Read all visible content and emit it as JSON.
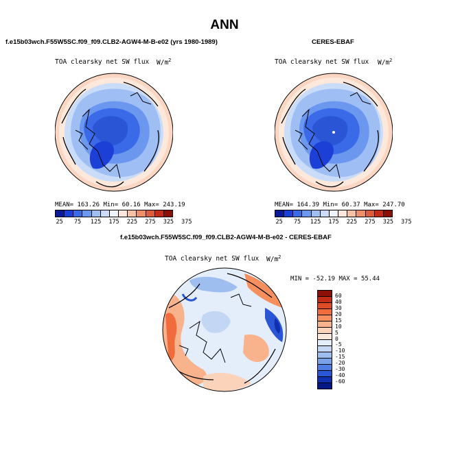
{
  "page_title": "ANN",
  "panels": [
    {
      "title": "f.e15b03wch.F55W5SC.f09_f09.CLB2-AGW4-M-B-e02 (yrs 1980-1989)",
      "variable": "TOA clearsky net SW flux",
      "units_base": "W/m",
      "units_exp": "2",
      "stats": {
        "mean_label": "MEAN=",
        "mean": "163.26",
        "min_label": "Min=",
        "min": "60.16",
        "max_label": "Max=",
        "max": "243.19"
      }
    },
    {
      "title": "CERES-EBAF",
      "variable": "TOA clearsky net SW flux",
      "units_base": "W/m",
      "units_exp": "2",
      "stats": {
        "mean_label": "MEAN=",
        "mean": "164.39",
        "min_label": "Min=",
        "min": "60.37",
        "max_label": "Max=",
        "max": "247.70"
      }
    },
    {
      "title": "f.e15b03wch.F55W5SC.f09_f09.CLB2-AGW4-M-B-e02 - CERES-EBAF",
      "variable": "TOA clearsky net SW flux",
      "units_base": "W/m",
      "units_exp": "2",
      "stats_line": "MIN = -52.19 MAX =  55.44"
    }
  ],
  "chart_data": [
    {
      "type": "heatmap",
      "projection": "north-polar-stereographic",
      "title": "f.e15b03wch.F55W5SC.f09_f09.CLB2-AGW4-M-B-e02 (yrs 1980-1989)",
      "variable": "TOA clearsky net SW flux",
      "units": "W/m2",
      "colorbar_labels": [
        "25",
        "75",
        "125",
        "175",
        "225",
        "275",
        "325",
        "375"
      ],
      "colorbar_colors": [
        "#0a1a99",
        "#1c3fd6",
        "#3a6ae8",
        "#6b97ef",
        "#9ebef4",
        "#c9dcf8",
        "#edf4fc",
        "#fde7da",
        "#f8c2a4",
        "#ef8f6a",
        "#e05a3c",
        "#c42c18",
        "#8c0f08"
      ],
      "mean": 163.26,
      "min": 60.16,
      "max": 243.19
    },
    {
      "type": "heatmap",
      "projection": "north-polar-stereographic",
      "title": "CERES-EBAF",
      "variable": "TOA clearsky net SW flux",
      "units": "W/m2",
      "colorbar_labels": [
        "25",
        "75",
        "125",
        "175",
        "225",
        "275",
        "325",
        "375"
      ],
      "colorbar_colors": [
        "#0a1a99",
        "#1c3fd6",
        "#3a6ae8",
        "#6b97ef",
        "#9ebef4",
        "#c9dcf8",
        "#edf4fc",
        "#fde7da",
        "#f8c2a4",
        "#ef8f6a",
        "#e05a3c",
        "#c42c18",
        "#8c0f08"
      ],
      "mean": 164.39,
      "min": 60.37,
      "max": 247.7
    },
    {
      "type": "heatmap",
      "projection": "north-polar-stereographic",
      "title": "f.e15b03wch.F55W5SC.f09_f09.CLB2-AGW4-M-B-e02 - CERES-EBAF",
      "variable": "TOA clearsky net SW flux",
      "units": "W/m2",
      "colorbar_labels": [
        "60",
        "40",
        "30",
        "20",
        "15",
        "10",
        "5",
        "0",
        "-5",
        "-10",
        "-15",
        "-20",
        "-30",
        "-40",
        "-60"
      ],
      "colorbar_colors": [
        "#8c0f08",
        "#c42c18",
        "#e04a26",
        "#f06c3c",
        "#f5905e",
        "#f8b28c",
        "#fbd3bb",
        "#fde9dc",
        "#e4eefb",
        "#c3d7f5",
        "#9ebef0",
        "#7aa2ea",
        "#4f7de3",
        "#2a55d4",
        "#1030b0",
        "#061886"
      ],
      "min": -52.19,
      "max": 55.44
    }
  ]
}
